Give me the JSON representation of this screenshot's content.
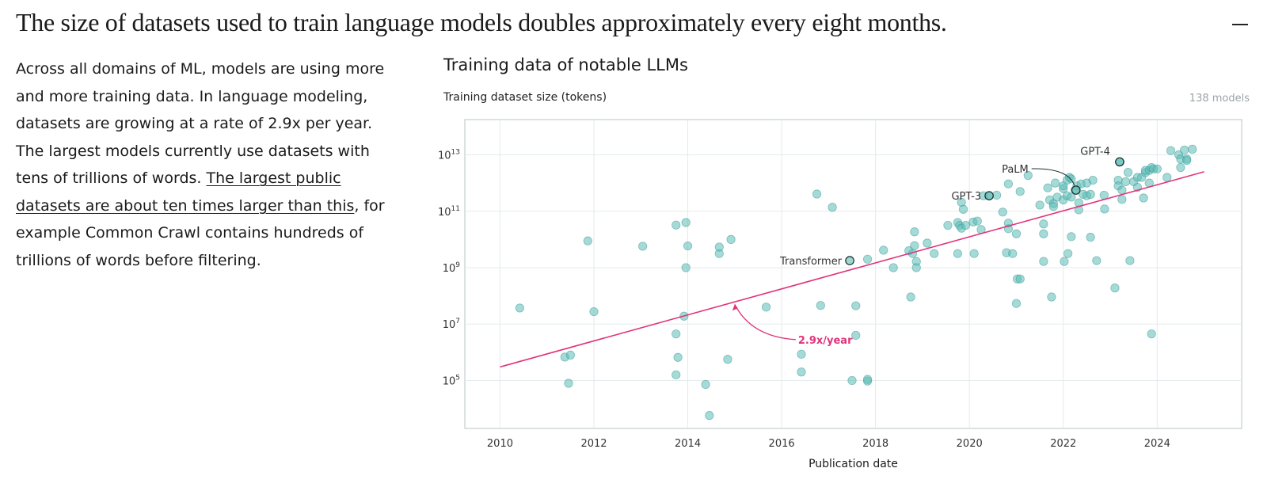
{
  "header": {
    "headline": "The size of datasets used to train language models doubles approximately every eight months.",
    "collapse_icon": "minus-icon"
  },
  "description": {
    "text_before": "Across all domains of ML, models are using more and more training data. In language modeling, datasets are growing at a rate of 2.9x per year. The largest models currently use datasets with tens of trillions of words. ",
    "link_text": "The largest public datasets are about ten times larger than this",
    "text_after": ", for example Common Crawl contains hundreds of trillions of words before filtering."
  },
  "chart_data": {
    "type": "scatter",
    "title": "Training data of notable LLMs",
    "ylabel": "Training dataset size (tokens)",
    "xlabel": "Publication date",
    "model_count": "138 models",
    "y_scale": "log10",
    "xlim": [
      2009.25,
      2025.8
    ],
    "ylim_exp": [
      3.3,
      14.25
    ],
    "x_ticks": [
      "2010",
      "2012",
      "2014",
      "2016",
      "2018",
      "2020",
      "2022",
      "2024"
    ],
    "y_ticks": [
      {
        "base": "10",
        "exp": "5"
      },
      {
        "base": "10",
        "exp": "7"
      },
      {
        "base": "10",
        "exp": "9"
      },
      {
        "base": "10",
        "exp": "11"
      },
      {
        "base": "10",
        "exp": "13"
      }
    ],
    "grid": true,
    "point_color": "#5bbcb6",
    "trend_color": "#e0347a",
    "trend": {
      "label": "2.9x/year",
      "x": [
        2010.0,
        2025.0
      ],
      "y_exp": [
        5.48,
        12.4
      ]
    },
    "annotations": [
      {
        "label": "Transformer",
        "x": 2017.45,
        "y_exp": 9.25
      },
      {
        "label": "GPT-3",
        "x": 2020.42,
        "y_exp": 11.55
      },
      {
        "label": "PaLM",
        "x": 2022.27,
        "y_exp": 11.75
      },
      {
        "label": "GPT-4",
        "x": 2023.2,
        "y_exp": 12.75
      }
    ],
    "points": [
      [
        2010.42,
        7.57
      ],
      [
        2011.38,
        5.83
      ],
      [
        2011.5,
        5.9
      ],
      [
        2011.46,
        4.9
      ],
      [
        2011.87,
        9.95
      ],
      [
        2012.0,
        7.44
      ],
      [
        2013.04,
        9.76
      ],
      [
        2013.75,
        10.51
      ],
      [
        2013.75,
        6.65
      ],
      [
        2013.79,
        5.82
      ],
      [
        2013.75,
        5.2
      ],
      [
        2013.92,
        7.28
      ],
      [
        2013.96,
        10.6
      ],
      [
        2013.96,
        9.0
      ],
      [
        2014.0,
        9.77
      ],
      [
        2014.38,
        4.86
      ],
      [
        2014.46,
        3.76
      ],
      [
        2014.67,
        9.5
      ],
      [
        2014.67,
        9.73
      ],
      [
        2014.85,
        5.75
      ],
      [
        2014.92,
        10.0
      ],
      [
        2015.67,
        7.6
      ],
      [
        2016.42,
        5.93
      ],
      [
        2016.42,
        5.3
      ],
      [
        2016.75,
        11.61
      ],
      [
        2016.83,
        7.66
      ],
      [
        2017.08,
        11.14
      ],
      [
        2017.5,
        5.0
      ],
      [
        2017.58,
        7.65
      ],
      [
        2017.58,
        6.6
      ],
      [
        2017.83,
        4.98
      ],
      [
        2017.83,
        5.04
      ],
      [
        2017.83,
        9.3
      ],
      [
        2018.17,
        9.62
      ],
      [
        2018.38,
        9.0
      ],
      [
        2018.71,
        9.6
      ],
      [
        2018.75,
        7.96
      ],
      [
        2018.79,
        9.5
      ],
      [
        2018.83,
        9.78
      ],
      [
        2018.83,
        10.27
      ],
      [
        2018.87,
        9.22
      ],
      [
        2018.87,
        9.0
      ],
      [
        2019.1,
        9.87
      ],
      [
        2019.25,
        9.5
      ],
      [
        2019.54,
        10.5
      ],
      [
        2019.75,
        10.6
      ],
      [
        2019.75,
        9.5
      ],
      [
        2019.79,
        10.5
      ],
      [
        2019.83,
        11.32
      ],
      [
        2019.87,
        11.07
      ],
      [
        2019.83,
        10.4
      ],
      [
        2019.92,
        10.5
      ],
      [
        2020.08,
        10.62
      ],
      [
        2020.1,
        9.5
      ],
      [
        2020.17,
        10.65
      ],
      [
        2020.25,
        10.35
      ],
      [
        2020.42,
        11.55
      ],
      [
        2020.58,
        11.57
      ],
      [
        2020.71,
        10.97
      ],
      [
        2020.79,
        9.53
      ],
      [
        2020.83,
        10.58
      ],
      [
        2020.83,
        10.38
      ],
      [
        2020.83,
        11.97
      ],
      [
        2020.92,
        9.5
      ],
      [
        2021.0,
        10.2
      ],
      [
        2021.02,
        8.6
      ],
      [
        2021.0,
        7.73
      ],
      [
        2021.08,
        8.6
      ],
      [
        2021.08,
        11.7
      ],
      [
        2021.25,
        12.27
      ],
      [
        2021.5,
        11.22
      ],
      [
        2021.58,
        10.2
      ],
      [
        2021.58,
        10.55
      ],
      [
        2021.58,
        9.22
      ],
      [
        2021.67,
        11.83
      ],
      [
        2021.71,
        11.4
      ],
      [
        2021.75,
        7.96
      ],
      [
        2021.79,
        11.27
      ],
      [
        2021.79,
        11.17
      ],
      [
        2021.83,
        12.0
      ],
      [
        2021.87,
        11.5
      ],
      [
        2022.0,
        11.4
      ],
      [
        2022.0,
        11.8
      ],
      [
        2022.0,
        11.9
      ],
      [
        2022.02,
        9.22
      ],
      [
        2022.08,
        11.55
      ],
      [
        2022.08,
        12.1
      ],
      [
        2022.1,
        9.5
      ],
      [
        2022.13,
        12.2
      ],
      [
        2022.17,
        12.15
      ],
      [
        2022.17,
        11.5
      ],
      [
        2022.17,
        10.1
      ],
      [
        2022.25,
        11.75
      ],
      [
        2022.29,
        11.9
      ],
      [
        2022.33,
        11.05
      ],
      [
        2022.33,
        11.3
      ],
      [
        2022.38,
        11.97
      ],
      [
        2022.42,
        11.6
      ],
      [
        2022.5,
        12.0
      ],
      [
        2022.5,
        11.55
      ],
      [
        2022.58,
        10.08
      ],
      [
        2022.58,
        11.6
      ],
      [
        2022.63,
        12.1
      ],
      [
        2022.71,
        9.25
      ],
      [
        2022.87,
        11.57
      ],
      [
        2022.88,
        11.08
      ],
      [
        2023.1,
        8.28
      ],
      [
        2023.17,
        12.1
      ],
      [
        2023.17,
        11.9
      ],
      [
        2023.21,
        12.75
      ],
      [
        2023.25,
        11.75
      ],
      [
        2023.25,
        11.42
      ],
      [
        2023.33,
        12.05
      ],
      [
        2023.38,
        12.38
      ],
      [
        2023.42,
        9.25
      ],
      [
        2023.5,
        12.05
      ],
      [
        2023.58,
        11.85
      ],
      [
        2023.58,
        12.2
      ],
      [
        2023.67,
        12.2
      ],
      [
        2023.71,
        11.47
      ],
      [
        2023.75,
        12.37
      ],
      [
        2023.75,
        12.45
      ],
      [
        2023.83,
        12.0
      ],
      [
        2023.83,
        12.45
      ],
      [
        2023.88,
        12.55
      ],
      [
        2023.88,
        6.65
      ],
      [
        2023.92,
        12.5
      ],
      [
        2024.0,
        12.5
      ],
      [
        2024.21,
        12.2
      ],
      [
        2024.29,
        13.15
      ],
      [
        2024.46,
        13.0
      ],
      [
        2024.5,
        12.85
      ],
      [
        2024.5,
        12.55
      ],
      [
        2024.58,
        13.17
      ],
      [
        2024.63,
        12.85
      ],
      [
        2024.63,
        12.8
      ],
      [
        2024.75,
        13.2
      ],
      [
        2020.3,
        11.55
      ]
    ]
  }
}
